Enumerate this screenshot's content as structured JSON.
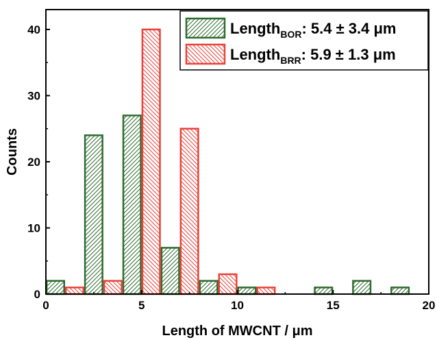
{
  "chart_data": {
    "type": "bar",
    "title": "",
    "xlabel": "Length of MWCNT / μm",
    "ylabel": "Counts",
    "xlim": [
      0,
      20
    ],
    "ylim": [
      0,
      43
    ],
    "xticks": [
      0,
      5,
      10,
      15,
      20
    ],
    "yticks": [
      0,
      10,
      20,
      30,
      40
    ],
    "bin_width": 1,
    "grid": false,
    "legend_position": "top-right",
    "series": [
      {
        "name": "Length_BOR: 5.4 ± 3.4 μm",
        "legend_main": "Length",
        "legend_sub": "BOR",
        "legend_rest": ": 5.4 ± 3.4 μm",
        "color": "#2e6b2e",
        "hatch": "forward-diagonal",
        "bins_left": [
          0,
          2,
          4,
          6,
          8,
          10,
          14,
          16,
          18
        ],
        "values": [
          2,
          24,
          27,
          7,
          2,
          1,
          1,
          2,
          1
        ]
      },
      {
        "name": "Length_BRR: 5.9 ± 1.3 μm",
        "legend_main": "Length",
        "legend_sub": "BRR",
        "legend_rest": ": 5.9 ± 1.3 μm",
        "color": "#e8423a",
        "hatch": "backward-diagonal",
        "bins_left": [
          1,
          3,
          5,
          7,
          9,
          11
        ],
        "values": [
          1,
          2,
          40,
          25,
          3,
          1
        ]
      }
    ]
  }
}
